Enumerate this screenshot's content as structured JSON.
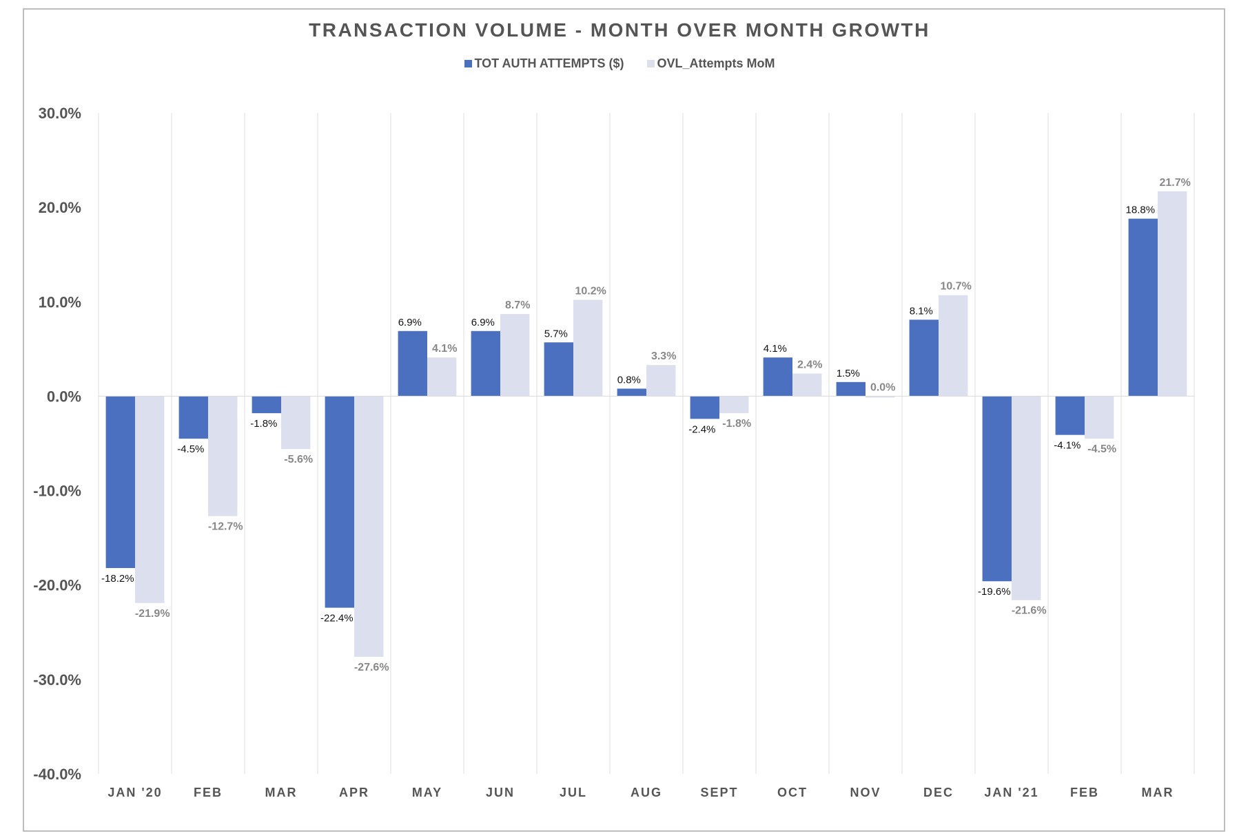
{
  "chart_data": {
    "type": "bar",
    "title": "TRANSACTION VOLUME - MONTH OVER MONTH GROWTH",
    "categories": [
      "JAN '20",
      "FEB",
      "MAR",
      "APR",
      "MAY",
      "JUN",
      "JUL",
      "AUG",
      "SEPT",
      "OCT",
      "NOV",
      "DEC",
      "JAN '21",
      "FEB",
      "MAR"
    ],
    "series": [
      {
        "name": "TOT AUTH ATTEMPTS ($)",
        "color": "#4a70bf",
        "values": [
          -18.2,
          -4.5,
          -1.8,
          -22.4,
          6.9,
          6.9,
          5.7,
          0.8,
          -2.4,
          4.1,
          1.5,
          8.1,
          -19.6,
          -4.1,
          18.8
        ],
        "labels": [
          "-18.2%",
          "-4.5%",
          "-1.8%",
          "-22.4%",
          "6.9%",
          "6.9%",
          "5.7%",
          "0.8%",
          "-2.4%",
          "4.1%",
          "1.5%",
          "8.1%",
          "-19.6%",
          "-4.1%",
          "18.8%"
        ]
      },
      {
        "name": "OVL_Attempts MoM",
        "color": "#dcdfee",
        "values": [
          -21.9,
          -12.7,
          -5.6,
          -27.6,
          4.1,
          8.7,
          10.2,
          3.3,
          -1.8,
          2.4,
          0.0,
          10.7,
          -21.6,
          -4.5,
          21.7
        ],
        "labels": [
          "-21.9%",
          "-12.7%",
          "-5.6%",
          "-27.6%",
          "4.1%",
          "8.7%",
          "10.2%",
          "3.3%",
          "-1.8%",
          "2.4%",
          "0.0%",
          "10.7%",
          "-21.6%",
          "-4.5%",
          "21.7%"
        ]
      }
    ],
    "yticks": [
      "30.0%",
      "20.0%",
      "10.0%",
      "0.0%",
      "-10.0%",
      "-20.0%",
      "-30.0%",
      "-40.0%"
    ],
    "ylim": [
      -40,
      30
    ],
    "xlabel": "",
    "ylabel": "",
    "grid": "vertical category separators",
    "legend": "top-center"
  }
}
